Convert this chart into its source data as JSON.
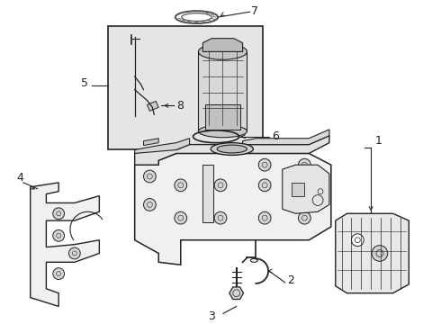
{
  "background_color": "#ffffff",
  "line_color": "#222222",
  "box_fill": "#e5e5e5",
  "tank_fill": "#f2f2f2",
  "fig_width": 4.9,
  "fig_height": 3.6,
  "dpi": 100
}
